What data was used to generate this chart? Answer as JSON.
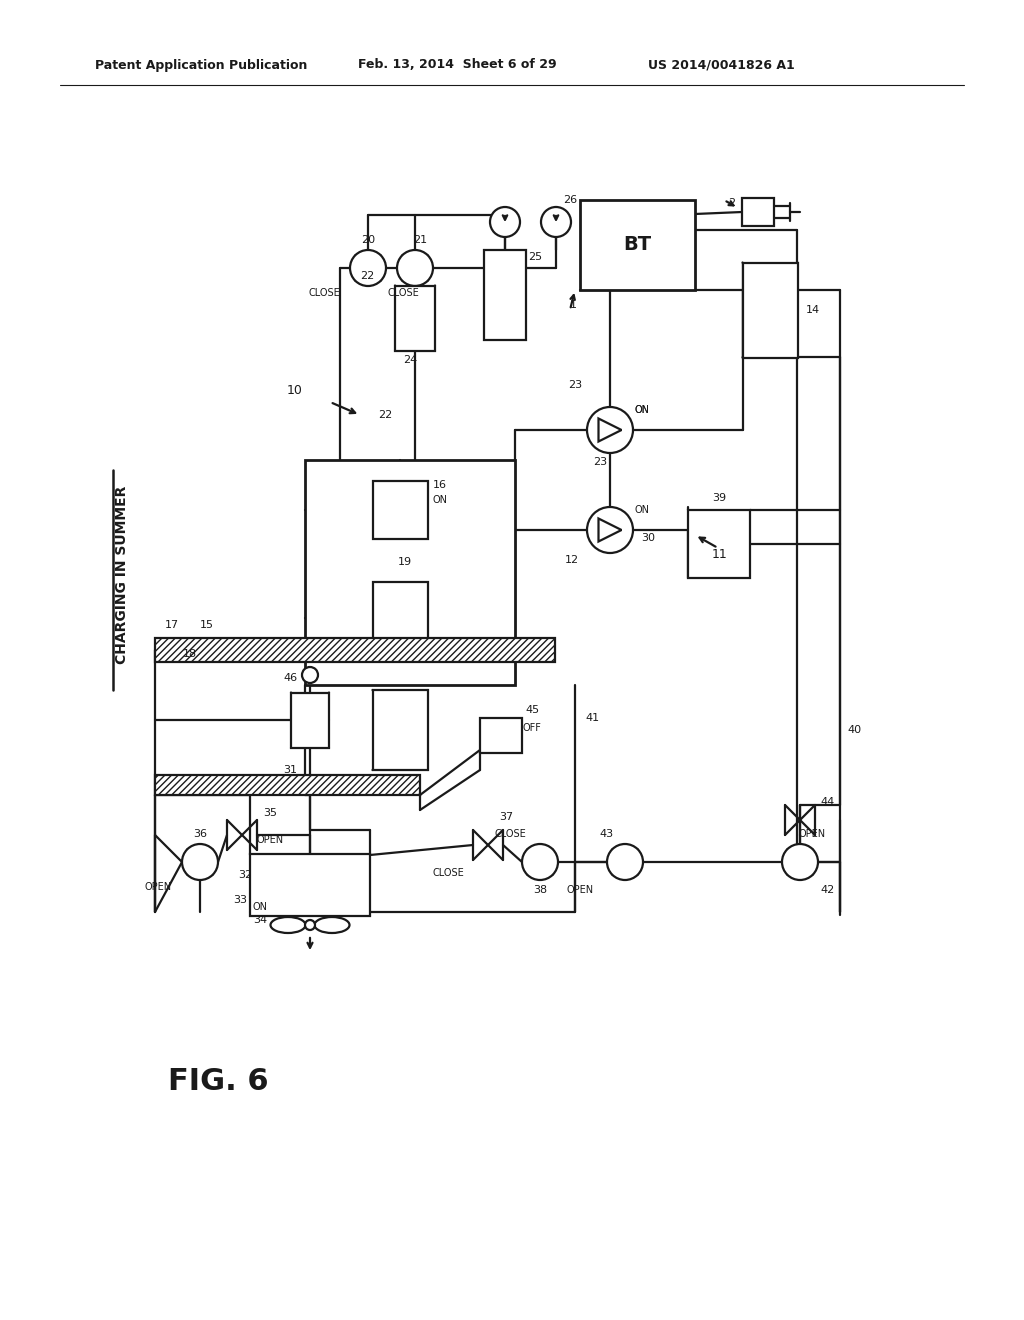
{
  "header_left": "Patent Application Publication",
  "header_mid": "Feb. 13, 2014  Sheet 6 of 29",
  "header_right": "US 2014/0041826 A1",
  "fig_label": "FIG. 6",
  "diagram_title": "CHARGING IN SUMMER",
  "bg": "#ffffff",
  "lc": "#1a1a1a",
  "lw": 1.6
}
